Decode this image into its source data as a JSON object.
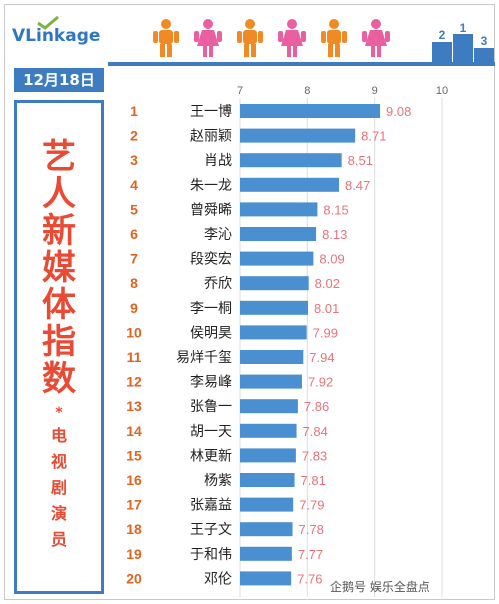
{
  "brand": {
    "logo_text": "VLinkage"
  },
  "date_label": "12月18日",
  "title_chars": [
    "艺",
    "人",
    "新",
    "媒",
    "体",
    "指",
    "数"
  ],
  "asterisk": "*",
  "subtitle_chars": [
    "电",
    "视",
    "剧",
    "演",
    "员"
  ],
  "podium_numbers": [
    "2",
    "1",
    "3"
  ],
  "watermark": "企鹅号 娱乐全盘点",
  "colors": {
    "accent": "#3d7cc0",
    "bar": "#4a8fcf",
    "title": "#e84a34",
    "value_text": "#e8737a",
    "rank_text": "#e0641f",
    "figure_orange": "#f08a24",
    "figure_pink": "#ea5fa0"
  },
  "chart_data": {
    "type": "bar",
    "orientation": "horizontal",
    "xlim": [
      7,
      10
    ],
    "x_ticks": [
      7,
      8,
      9,
      10
    ],
    "grid": true,
    "ranks": [
      1,
      2,
      3,
      4,
      5,
      6,
      7,
      8,
      9,
      10,
      11,
      12,
      13,
      14,
      15,
      16,
      17,
      18,
      19,
      20
    ],
    "categories": [
      "王一博",
      "赵丽颖",
      "肖战",
      "朱一龙",
      "曾舜晞",
      "李沁",
      "段奕宏",
      "乔欣",
      "李一桐",
      "侯明昊",
      "易烊千玺",
      "李易峰",
      "张鲁一",
      "胡一天",
      "林更新",
      "杨紫",
      "张嘉益",
      "王子文",
      "于和伟",
      "邓伦"
    ],
    "values": [
      9.08,
      8.71,
      8.51,
      8.47,
      8.15,
      8.13,
      8.09,
      8.02,
      8.01,
      7.99,
      7.94,
      7.92,
      7.86,
      7.84,
      7.83,
      7.81,
      7.79,
      7.78,
      7.77,
      7.76
    ],
    "value_labels": [
      "9.08",
      "8.71",
      "8.51",
      "8.47",
      "8.15",
      "8.13",
      "8.09",
      "8.02",
      "8.01",
      "7.99",
      "7.94",
      "7.92",
      "7.86",
      "7.84",
      "7.83",
      "7.81",
      "7.79",
      "7.78",
      "7.77",
      "7.76"
    ]
  }
}
